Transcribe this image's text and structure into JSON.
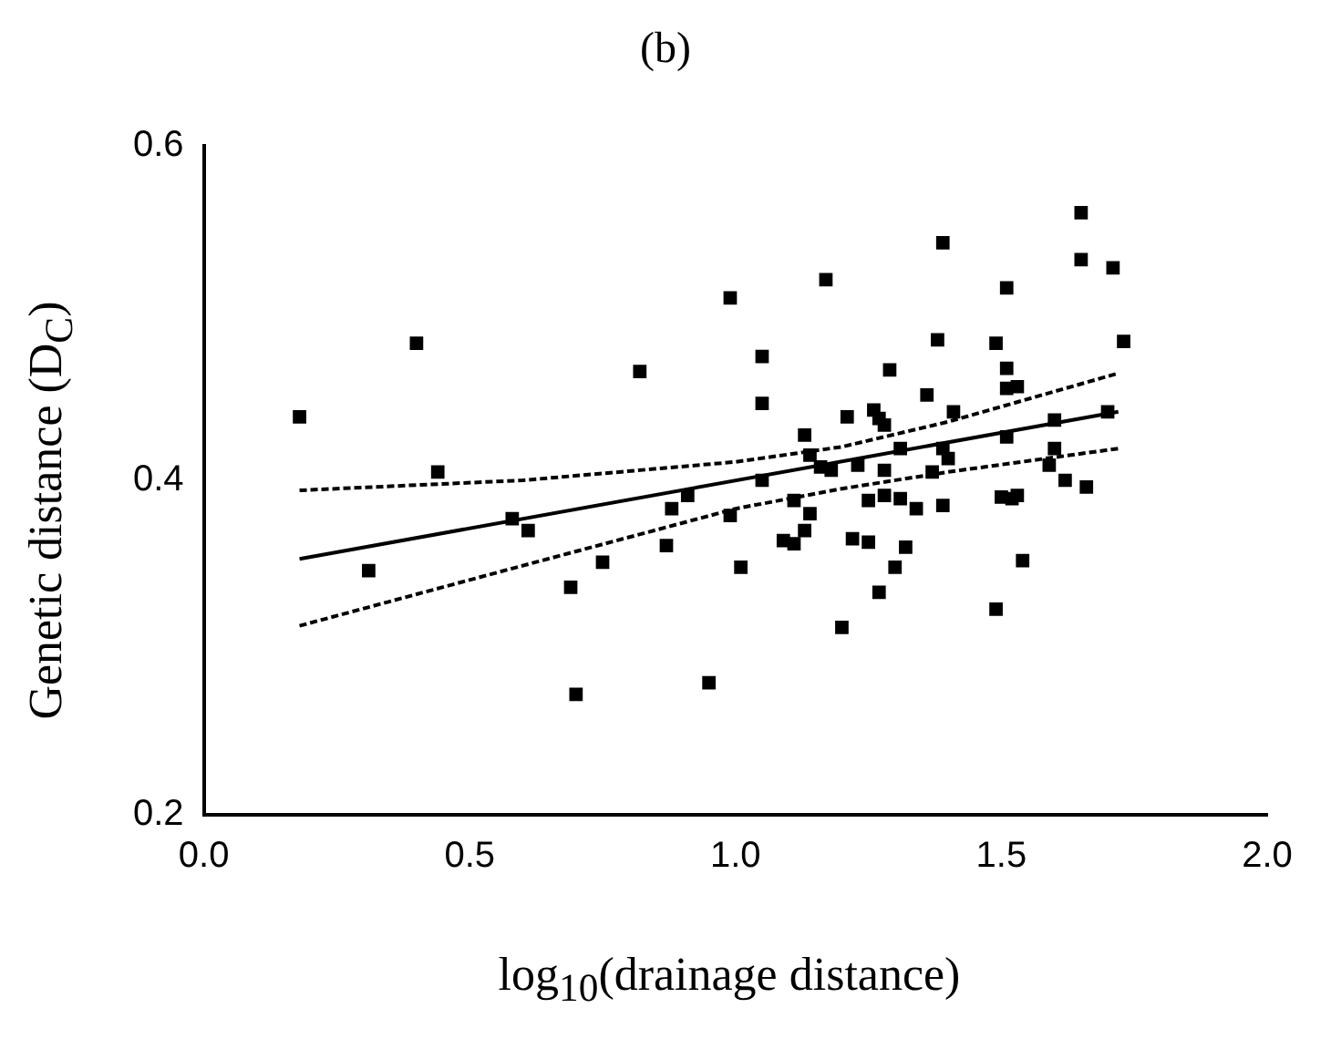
{
  "chart_data": {
    "type": "scatter",
    "title": "(b)",
    "xlabel": "log$_{10}$(drainage distance)",
    "ylabel": "Genetic distance (D$_{C}$)",
    "xlim": [
      0,
      2
    ],
    "xticks": [
      {
        "value": 0,
        "label": "0.0"
      },
      0.5,
      {
        "value": 1,
        "label": "1.0"
      },
      1.5,
      {
        "value": 2,
        "label": "2.0"
      }
    ],
    "ylim": [
      0.2,
      0.6
    ],
    "yticks": [
      0.2,
      0.4,
      0.6
    ],
    "grid": false,
    "marker": "square",
    "series": [
      {
        "color": "#000000",
        "x": [
          0.18,
          0.31,
          0.4,
          0.44,
          0.58,
          0.61,
          0.69,
          0.7,
          0.75,
          0.82,
          0.87,
          0.88,
          0.91,
          0.95,
          0.99,
          0.99,
          1.01,
          1.05,
          1.05,
          1.05,
          1.09,
          1.11,
          1.13,
          1.11,
          1.14,
          1.13,
          1.14,
          1.16,
          1.18,
          1.17,
          1.21,
          1.22,
          1.2,
          1.23,
          1.25,
          1.25,
          1.26,
          1.27,
          1.28,
          1.29,
          1.28,
          1.28,
          1.31,
          1.32,
          1.3,
          1.27,
          1.31,
          1.34,
          1.36,
          1.38,
          1.39,
          1.39,
          1.4,
          1.37,
          1.39,
          1.41,
          1.49,
          1.49,
          1.51,
          1.51,
          1.51,
          1.53,
          1.51,
          1.5,
          1.52,
          1.53,
          1.54,
          1.6,
          1.6,
          1.59,
          1.62,
          1.66,
          1.65,
          1.65,
          1.71,
          1.73,
          1.7
        ],
        "values": [
          0.438,
          0.346,
          0.482,
          0.405,
          0.377,
          0.37,
          0.336,
          0.272,
          0.351,
          0.465,
          0.361,
          0.383,
          0.391,
          0.279,
          0.509,
          0.379,
          0.348,
          0.474,
          0.446,
          0.4,
          0.364,
          0.362,
          0.37,
          0.388,
          0.38,
          0.427,
          0.415,
          0.408,
          0.406,
          0.52,
          0.438,
          0.365,
          0.312,
          0.409,
          0.388,
          0.363,
          0.442,
          0.437,
          0.433,
          0.466,
          0.406,
          0.391,
          0.389,
          0.36,
          0.348,
          0.333,
          0.419,
          0.383,
          0.451,
          0.484,
          0.542,
          0.419,
          0.413,
          0.405,
          0.385,
          0.441,
          0.482,
          0.323,
          0.515,
          0.467,
          0.455,
          0.456,
          0.426,
          0.39,
          0.389,
          0.391,
          0.352,
          0.436,
          0.419,
          0.409,
          0.4,
          0.396,
          0.56,
          0.532,
          0.527,
          0.483,
          0.441
        ]
      },
      {
        "type": "line",
        "color": "#000000",
        "marker": "none",
        "line_style": "solid",
        "x": [
          0.18,
          1.72
        ],
        "values": [
          0.353,
          0.441
        ]
      },
      {
        "type": "line",
        "color": "#000000",
        "marker": "none",
        "line_style": "dashed",
        "x": [
          0.18,
          0.6,
          1.0,
          1.2,
          1.4,
          1.72
        ],
        "values": [
          0.394,
          0.4,
          0.411,
          0.42,
          0.435,
          0.464
        ]
      },
      {
        "type": "line",
        "color": "#000000",
        "marker": "none",
        "line_style": "dashed",
        "x": [
          0.18,
          0.6,
          1.0,
          1.2,
          1.4,
          1.72
        ],
        "values": [
          0.313,
          0.349,
          0.383,
          0.395,
          0.405,
          0.419
        ]
      }
    ]
  }
}
